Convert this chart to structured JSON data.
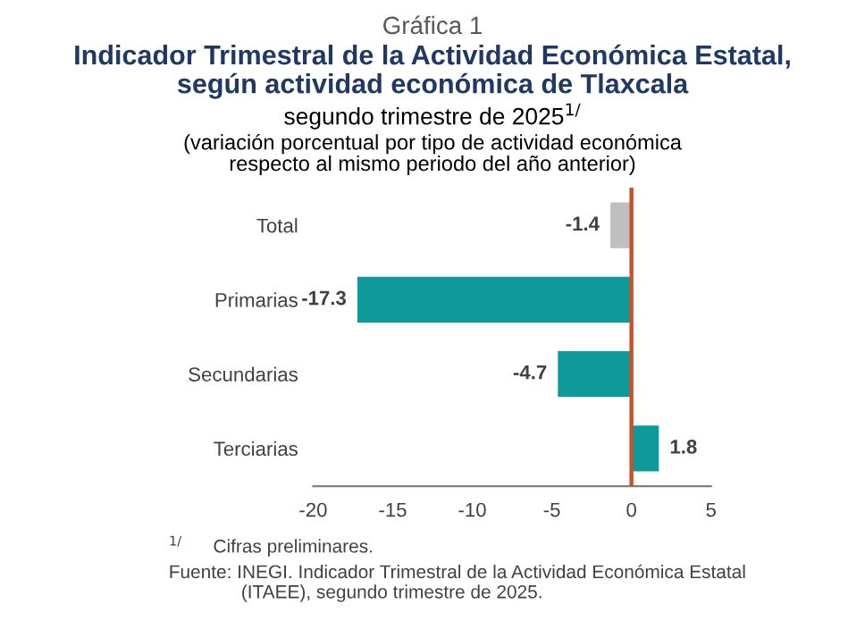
{
  "chart_data": {
    "type": "bar",
    "orientation": "horizontal",
    "title": "Indicador Trimestral de la Actividad Económica Estatal,\nsegún actividad económica de Tlaxcala",
    "subtitle": "segundo trimestre de 2025$^{1/}$\n(variación porcentual por tipo de actividad económica\nrespecto al mismo periodo del año anterior)",
    "categories": [
      "Total",
      "Primarias",
      "Secundarias",
      "Terciarias"
    ],
    "values": [
      -1.4,
      -17.3,
      -4.7,
      1.8
    ],
    "colors": [
      "#bfbfbf",
      "#0e9a9a",
      "#0e9a9a",
      "#0e9a9a"
    ],
    "data_labels": true,
    "xlim": [
      -20,
      5
    ],
    "xticks": [
      -20,
      -15,
      -10,
      -5,
      0,
      5
    ],
    "ref_lines": [
      {
        "axis": "x",
        "value": 0,
        "label": null,
        "color": "#c8502a"
      }
    ],
    "grid": false,
    "annotations": [
      "Gráfica 1",
      "$^{1/}$      Cifras preliminares.",
      "Fuente: INEGI. Indicador Trimestral de la Actividad Económica Estatal\n              (ITAEE), segundo trimestre de 2025."
    ]
  }
}
